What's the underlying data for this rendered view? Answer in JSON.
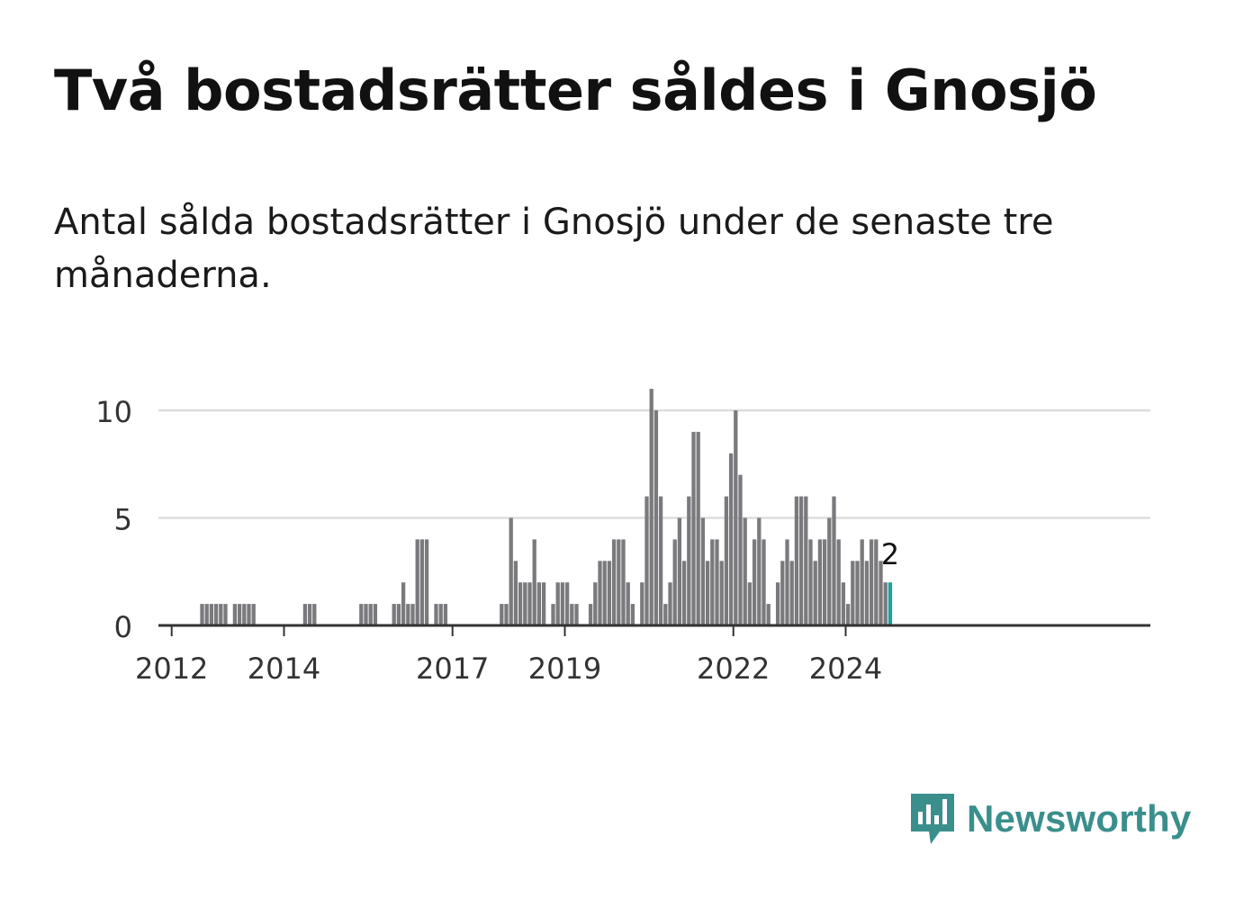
{
  "title": "Två bostadsrätter såldes i Gnosjö",
  "subtitle": "Antal sålda bostadsrätter i Gnosjö under de senaste tre månaderna.",
  "brand": {
    "name": "Newsworthy",
    "color": "#3a8f8c"
  },
  "colors": {
    "bar": "#7a7a7e",
    "highlight": "#1ba39c",
    "grid": "#dddddd",
    "axis": "#333333"
  },
  "chart_data": {
    "type": "bar",
    "y_ticks": [
      0,
      5,
      10
    ],
    "ylim": [
      0,
      11.5
    ],
    "x_ticks": [
      {
        "label": "2012",
        "date": "2012-01"
      },
      {
        "label": "2014",
        "date": "2014-01"
      },
      {
        "label": "2017",
        "date": "2017-01"
      },
      {
        "label": "2019",
        "date": "2019-01"
      },
      {
        "label": "2022",
        "date": "2022-01"
      },
      {
        "label": "2024",
        "date": "2024-01"
      }
    ],
    "start_month": "2011-03",
    "values": [
      0,
      0,
      0,
      0,
      0,
      0,
      0,
      0,
      0,
      0,
      0,
      0,
      0,
      0,
      0,
      0,
      1,
      1,
      1,
      1,
      1,
      1,
      0,
      1,
      1,
      1,
      1,
      1,
      0,
      0,
      0,
      0,
      0,
      0,
      0,
      0,
      0,
      0,
      1,
      1,
      1,
      0,
      0,
      0,
      0,
      0,
      0,
      0,
      0,
      0,
      1,
      1,
      1,
      1,
      0,
      0,
      0,
      1,
      1,
      2,
      1,
      1,
      4,
      4,
      4,
      0,
      1,
      1,
      1,
      0,
      0,
      0,
      0,
      0,
      0,
      0,
      0,
      0,
      0,
      0,
      1,
      1,
      5,
      3,
      2,
      2,
      2,
      4,
      2,
      2,
      0,
      1,
      2,
      2,
      2,
      1,
      1,
      0,
      0,
      1,
      2,
      3,
      3,
      3,
      4,
      4,
      4,
      2,
      1,
      0,
      2,
      6,
      11,
      10,
      6,
      1,
      2,
      4,
      5,
      3,
      6,
      9,
      9,
      5,
      3,
      4,
      4,
      3,
      6,
      8,
      10,
      7,
      5,
      2,
      4,
      5,
      4,
      1,
      0,
      2,
      3,
      4,
      3,
      6,
      6,
      6,
      4,
      3,
      4,
      4,
      5,
      6,
      4,
      2,
      1,
      3,
      3,
      4,
      3,
      4,
      4,
      3,
      2,
      2
    ],
    "highlight_label": "2"
  }
}
